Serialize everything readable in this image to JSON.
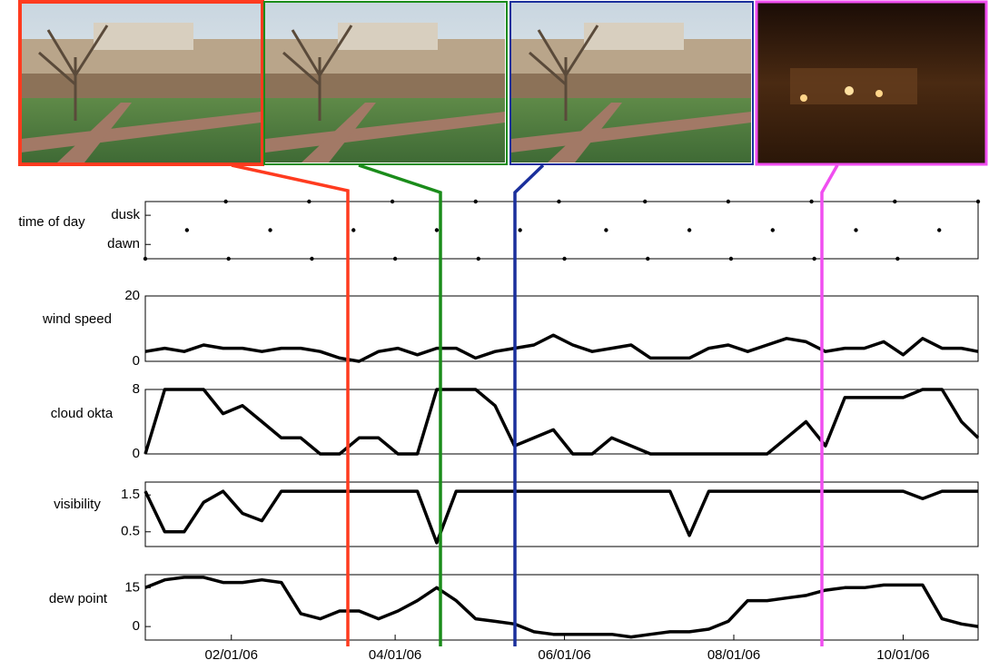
{
  "chart_data": [
    {
      "type": "scatter",
      "ylabel": "time of day",
      "color": "#000000",
      "x": [
        "01/01/06",
        "01/16/06",
        "01/30/06",
        "01/31/06",
        "02/15/06",
        "03/01/06",
        "03/02/06",
        "03/17/06",
        "03/31/06",
        "04/01/06",
        "04/16/06",
        "04/30/06",
        "05/01/06",
        "05/16/06",
        "05/30/06",
        "06/01/06",
        "06/16/06",
        "06/30/06",
        "07/01/06",
        "07/16/06",
        "07/30/06",
        "07/31/06",
        "08/15/06",
        "08/29/06",
        "08/30/06",
        "09/14/06",
        "09/28/06",
        "09/29/06",
        "10/14/06",
        "10/28/06"
      ],
      "values": [
        0,
        0.5,
        1,
        0,
        0.5,
        1,
        0,
        0.5,
        1,
        0,
        0.5,
        1,
        0,
        0.5,
        1,
        0,
        0.5,
        1,
        0,
        0.5,
        1,
        0,
        0.5,
        1,
        0,
        0.5,
        1,
        0,
        0.5,
        1
      ],
      "xlim": [
        "01/01/06",
        "10/28/06"
      ],
      "ylim": [
        0,
        1
      ],
      "yticks": [
        {
          "value": 0.25,
          "label": "dawn"
        },
        {
          "value": 0.76,
          "label": "dusk"
        }
      ]
    },
    {
      "type": "line",
      "ylabel": "wind speed",
      "color": "#000000",
      "x": [
        "01/01/06",
        "01/08/06",
        "01/15/06",
        "01/22/06",
        "01/29/06",
        "02/05/06",
        "02/12/06",
        "02/19/06",
        "02/26/06",
        "03/05/06",
        "03/12/06",
        "03/19/06",
        "03/26/06",
        "04/02/06",
        "04/09/06",
        "04/16/06",
        "04/23/06",
        "04/30/06",
        "05/07/06",
        "05/14/06",
        "05/21/06",
        "05/28/06",
        "06/04/06",
        "06/11/06",
        "06/18/06",
        "06/25/06",
        "07/02/06",
        "07/09/06",
        "07/16/06",
        "07/23/06",
        "07/30/06",
        "08/06/06",
        "08/13/06",
        "08/20/06",
        "08/27/06",
        "09/03/06",
        "09/10/06",
        "09/17/06",
        "09/24/06",
        "10/01/06",
        "10/08/06",
        "10/15/06",
        "10/22/06",
        "10/28/06"
      ],
      "values": [
        3,
        4,
        3,
        5,
        4,
        4,
        3,
        4,
        4,
        3,
        1,
        0,
        3,
        4,
        2,
        4,
        4,
        1,
        3,
        4,
        5,
        8,
        5,
        3,
        4,
        5,
        1,
        1,
        1,
        4,
        5,
        3,
        5,
        7,
        6,
        3,
        4,
        4,
        6,
        2,
        7,
        4,
        4,
        3
      ],
      "xlim": [
        "01/01/06",
        "10/28/06"
      ],
      "ylim": [
        0,
        20
      ],
      "yticks": [
        0,
        20
      ]
    },
    {
      "type": "line",
      "ylabel": "cloud okta",
      "color": "#000000",
      "x": [
        "01/01/06",
        "01/08/06",
        "01/15/06",
        "01/22/06",
        "01/29/06",
        "02/05/06",
        "02/12/06",
        "02/19/06",
        "02/26/06",
        "03/05/06",
        "03/12/06",
        "03/19/06",
        "03/26/06",
        "04/02/06",
        "04/09/06",
        "04/16/06",
        "04/23/06",
        "04/30/06",
        "05/07/06",
        "05/14/06",
        "05/21/06",
        "05/28/06",
        "06/04/06",
        "06/11/06",
        "06/18/06",
        "06/25/06",
        "07/02/06",
        "07/09/06",
        "07/16/06",
        "07/23/06",
        "07/30/06",
        "08/06/06",
        "08/13/06",
        "08/20/06",
        "08/27/06",
        "09/03/06",
        "09/10/06",
        "09/17/06",
        "09/24/06",
        "10/01/06",
        "10/08/06",
        "10/15/06",
        "10/22/06",
        "10/28/06"
      ],
      "values": [
        0,
        8,
        8,
        8,
        5,
        6,
        4,
        2,
        2,
        0,
        0,
        2,
        2,
        0,
        0,
        8,
        8,
        8,
        6,
        1,
        2,
        3,
        0,
        0,
        2,
        1,
        0,
        0,
        0,
        0,
        0,
        0,
        0,
        2,
        4,
        1,
        7,
        7,
        7,
        7,
        8,
        8,
        4,
        2
      ],
      "xlim": [
        "01/01/06",
        "10/28/06"
      ],
      "ylim": [
        0,
        8
      ],
      "yticks": [
        0,
        8
      ]
    },
    {
      "type": "line",
      "ylabel": "visibility",
      "color": "#000000",
      "x": [
        "01/01/06",
        "01/08/06",
        "01/15/06",
        "01/22/06",
        "01/29/06",
        "02/05/06",
        "02/12/06",
        "02/19/06",
        "02/26/06",
        "03/05/06",
        "03/12/06",
        "03/19/06",
        "03/26/06",
        "04/02/06",
        "04/09/06",
        "04/16/06",
        "04/23/06",
        "04/30/06",
        "05/07/06",
        "05/14/06",
        "05/21/06",
        "05/28/06",
        "06/04/06",
        "06/11/06",
        "06/18/06",
        "06/25/06",
        "07/02/06",
        "07/09/06",
        "07/16/06",
        "07/23/06",
        "07/30/06",
        "08/06/06",
        "08/13/06",
        "08/20/06",
        "08/27/06",
        "09/03/06",
        "09/10/06",
        "09/17/06",
        "09/24/06",
        "10/01/06",
        "10/08/06",
        "10/15/06",
        "10/22/06",
        "10/28/06"
      ],
      "values": [
        1.6,
        0.5,
        0.5,
        1.3,
        1.6,
        1.0,
        0.8,
        1.6,
        1.6,
        1.6,
        1.6,
        1.6,
        1.6,
        1.6,
        1.6,
        0.2,
        1.6,
        1.6,
        1.6,
        1.6,
        1.6,
        1.6,
        1.6,
        1.6,
        1.6,
        1.6,
        1.6,
        1.6,
        0.4,
        1.6,
        1.6,
        1.6,
        1.6,
        1.6,
        1.6,
        1.6,
        1.6,
        1.6,
        1.6,
        1.6,
        1.4,
        1.6,
        1.6,
        1.6
      ],
      "xlim": [
        "01/01/06",
        "10/28/06"
      ],
      "ylim": [
        0.1,
        1.85
      ],
      "yticks": [
        0.5,
        1.5
      ]
    },
    {
      "type": "line",
      "ylabel": "dew point",
      "color": "#000000",
      "x": [
        "01/01/06",
        "01/08/06",
        "01/15/06",
        "01/22/06",
        "01/29/06",
        "02/05/06",
        "02/12/06",
        "02/19/06",
        "02/26/06",
        "03/05/06",
        "03/12/06",
        "03/19/06",
        "03/26/06",
        "04/02/06",
        "04/09/06",
        "04/16/06",
        "04/23/06",
        "04/30/06",
        "05/07/06",
        "05/14/06",
        "05/21/06",
        "05/28/06",
        "06/04/06",
        "06/11/06",
        "06/18/06",
        "06/25/06",
        "07/02/06",
        "07/09/06",
        "07/16/06",
        "07/23/06",
        "07/30/06",
        "08/06/06",
        "08/13/06",
        "08/20/06",
        "08/27/06",
        "09/03/06",
        "09/10/06",
        "09/17/06",
        "09/24/06",
        "10/01/06",
        "10/08/06",
        "10/15/06",
        "10/22/06",
        "10/28/06"
      ],
      "values": [
        15,
        18,
        19,
        19,
        17,
        17,
        18,
        17,
        5,
        3,
        6,
        6,
        3,
        6,
        10,
        15,
        10,
        3,
        2,
        1,
        -2,
        -3,
        -3,
        -3,
        -3,
        -4,
        -3,
        -2,
        -2,
        -1,
        2,
        10,
        10,
        11,
        12,
        14,
        15,
        15,
        16,
        16,
        16,
        3,
        1,
        0
      ],
      "xlim": [
        "01/01/06",
        "10/28/06"
      ],
      "ylim": [
        -5.2,
        20
      ],
      "yticks": [
        0,
        15
      ],
      "xticks": [
        "02/01/06",
        "04/01/06",
        "06/01/06",
        "08/01/06",
        "10/01/06"
      ]
    }
  ]
}
